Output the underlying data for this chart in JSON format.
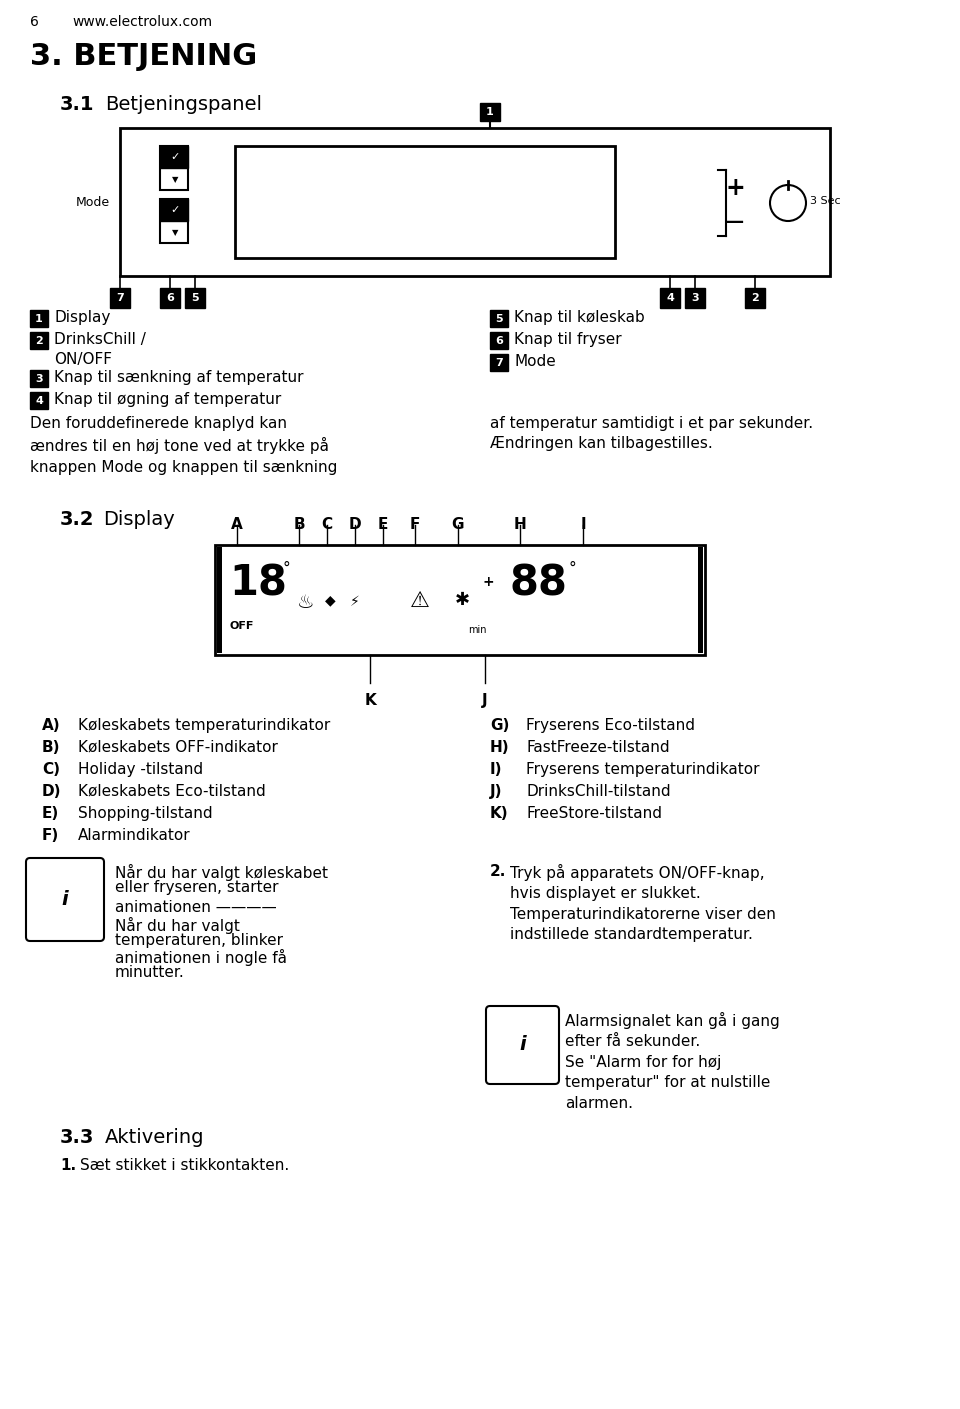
{
  "bg_color": "#ffffff",
  "page_number": "6",
  "website": "www.electrolux.com",
  "section_title": "3. BETJENING",
  "sub31_bold": "3.1",
  "sub31_normal": "Betjeningspanel",
  "sub32_bold": "3.2",
  "sub32_normal": "Display",
  "sub33_bold": "3.3",
  "sub33_normal": "Aktivering",
  "items_left": [
    [
      "1",
      "Display"
    ],
    [
      "2",
      "DrinksChill /\nON/OFF"
    ],
    [
      "3",
      "Knap til sænkning af temperatur"
    ],
    [
      "4",
      "Knap til øgning af temperatur"
    ]
  ],
  "items_right": [
    [
      "5",
      "Knap til køleskab"
    ],
    [
      "6",
      "Knap til fryser"
    ],
    [
      "7",
      "Mode"
    ]
  ],
  "paragraph_left": "Den foruddefinerede knaplyd kan\nændres til en høj tone ved at trykke på\nknappen Mode og knappen til sænkning",
  "paragraph_right": "af temperatur samtidigt i et par sekunder.\nÆndringen kan tilbagestilles.",
  "abc_items_left": [
    [
      "A)",
      "Køleskabets temperaturindikator"
    ],
    [
      "B)",
      "Køleskabets OFF-indikator"
    ],
    [
      "C)",
      "Holiday -tilstand"
    ],
    [
      "D)",
      "Køleskabets Eco-tilstand"
    ],
    [
      "E)",
      "Shopping-tilstand"
    ],
    [
      "F)",
      "Alarmindikator"
    ]
  ],
  "abc_items_right": [
    [
      "G)",
      "Fryserens Eco-tilstand"
    ],
    [
      "H)",
      "FastFreeze-tilstand"
    ],
    [
      "I)",
      "Fryserens temperaturindikator"
    ],
    [
      "J)",
      "DrinksChill-tilstand"
    ],
    [
      "K)",
      "FreeStore-tilstand"
    ]
  ],
  "info1_line1": "Når du har valgt køleskabet",
  "info1_line2": "eller fryseren, starter",
  "info1_line3": "animationen ————",
  "info1_line4": "Når du har valgt",
  "info1_line5": "temperaturen, blinker",
  "info1_line6": "animationen i nogle få",
  "info1_line7": "minutter.",
  "item2_bold": "2.",
  "item2_text": "Tryk på apparatets ON/OFF-knap,\nhvis displayet er slukket.\nTemperaturindikatorerne viser den\nindstillede standardtemperatur.",
  "info2_text": "Alarmsignalet kan gå i gang\nefter få sekunder.\nSe \"Alarm for for høj\ntemperatur\" for at nulstille\nalarmen.",
  "act_item1": "1.",
  "act_item1_text": "Sæt stikket i stikkontakten."
}
